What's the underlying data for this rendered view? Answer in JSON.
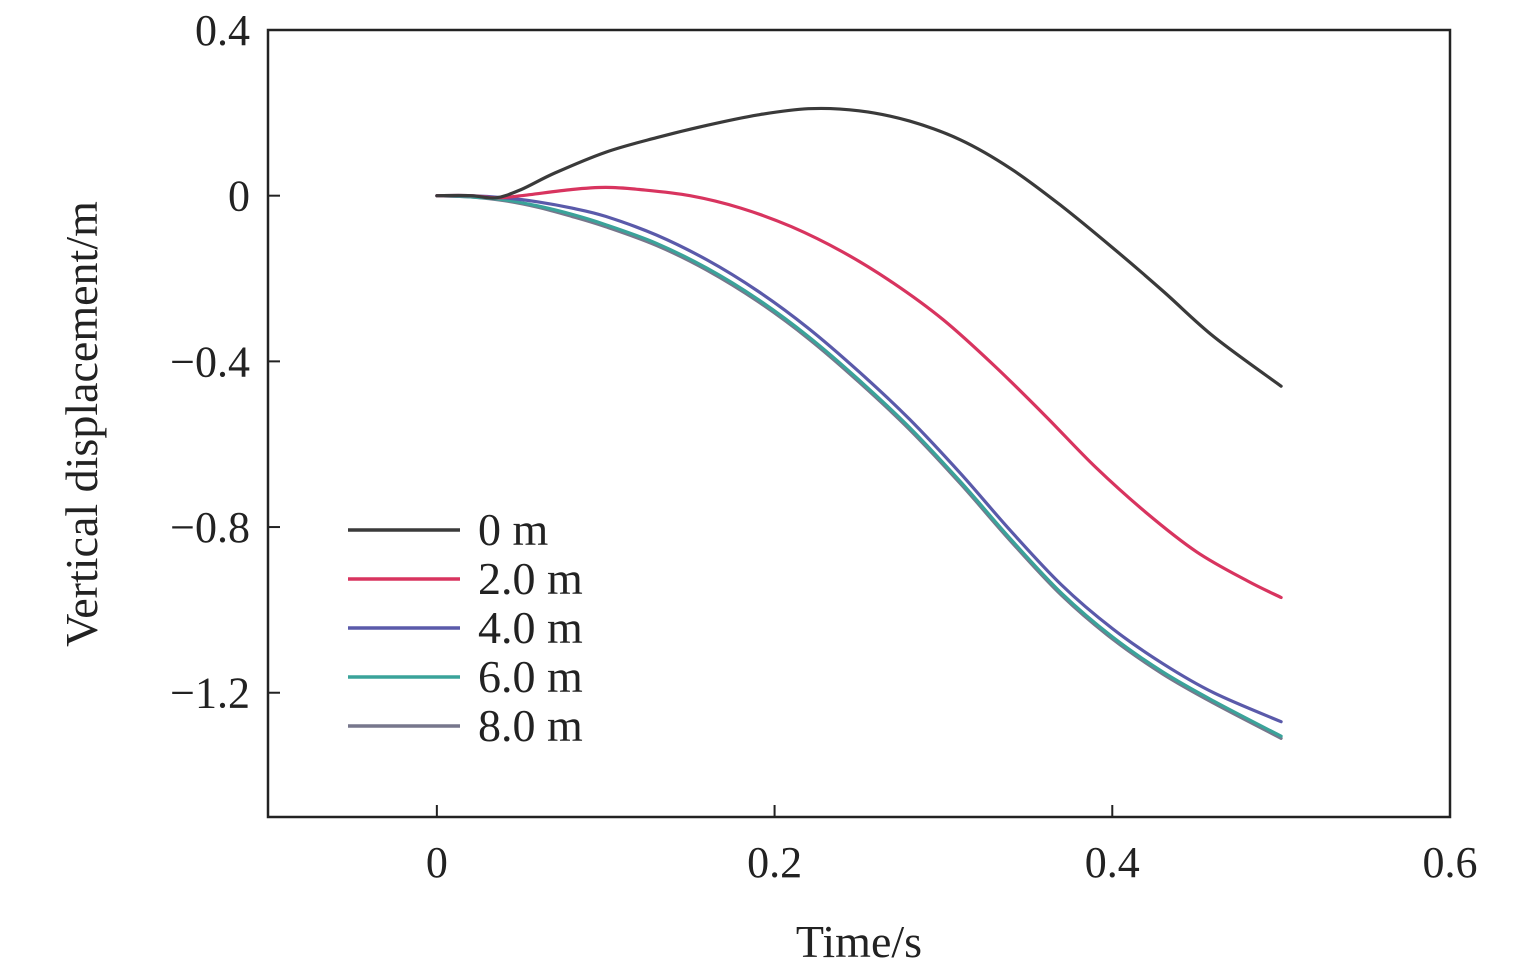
{
  "chart_data": {
    "type": "line",
    "xlabel": "Time/s",
    "ylabel": "Vertical displacement/m",
    "xlim": [
      -0.1,
      0.6
    ],
    "ylim": [
      -1.5,
      0.4
    ],
    "x_ticks": [
      "0",
      "0.2",
      "0.4",
      "0.6"
    ],
    "x_tick_values": [
      0,
      0.2,
      0.4,
      0.6
    ],
    "y_ticks": [
      "0.4",
      "0",
      "−0.4",
      "−0.8",
      "−1.2"
    ],
    "y_tick_values": [
      0.4,
      0,
      -0.4,
      -0.8,
      -1.2
    ],
    "grid": false,
    "legend_position": "bottom-left",
    "series": [
      {
        "name": "0 m",
        "color": "#3a3a3a",
        "x": [
          0,
          0.02,
          0.035,
          0.05,
          0.07,
          0.1,
          0.13,
          0.16,
          0.19,
          0.22,
          0.25,
          0.28,
          0.31,
          0.34,
          0.37,
          0.4,
          0.43,
          0.46,
          0.5
        ],
        "y": [
          0,
          0,
          -0.005,
          0.015,
          0.055,
          0.105,
          0.14,
          0.17,
          0.195,
          0.21,
          0.205,
          0.18,
          0.135,
          0.065,
          -0.025,
          -0.125,
          -0.23,
          -0.34,
          -0.46
        ]
      },
      {
        "name": "2.0 m",
        "color": "#d8345f",
        "x": [
          0,
          0.02,
          0.035,
          0.05,
          0.08,
          0.1,
          0.12,
          0.15,
          0.18,
          0.21,
          0.24,
          0.27,
          0.3,
          0.33,
          0.36,
          0.39,
          0.42,
          0.45,
          0.48,
          0.5
        ],
        "y": [
          0,
          0,
          -0.005,
          0,
          0.015,
          0.02,
          0.015,
          0,
          -0.03,
          -0.075,
          -0.135,
          -0.21,
          -0.3,
          -0.41,
          -0.53,
          -0.655,
          -0.765,
          -0.86,
          -0.93,
          -0.97
        ]
      },
      {
        "name": "4.0 m",
        "color": "#5a5aaa",
        "x": [
          0,
          0.02,
          0.04,
          0.06,
          0.08,
          0.1,
          0.13,
          0.16,
          0.19,
          0.22,
          0.25,
          0.28,
          0.31,
          0.34,
          0.37,
          0.4,
          0.43,
          0.46,
          0.5
        ],
        "y": [
          0,
          0,
          -0.005,
          -0.015,
          -0.03,
          -0.05,
          -0.095,
          -0.155,
          -0.23,
          -0.32,
          -0.425,
          -0.54,
          -0.67,
          -0.81,
          -0.94,
          -1.045,
          -1.13,
          -1.2,
          -1.27
        ]
      },
      {
        "name": "6.0 m",
        "color": "#3aa39a",
        "x": [
          0,
          0.02,
          0.04,
          0.06,
          0.08,
          0.1,
          0.13,
          0.16,
          0.19,
          0.22,
          0.25,
          0.28,
          0.31,
          0.34,
          0.37,
          0.4,
          0.43,
          0.46,
          0.5
        ],
        "y": [
          0,
          -0.003,
          -0.01,
          -0.025,
          -0.045,
          -0.07,
          -0.115,
          -0.175,
          -0.25,
          -0.34,
          -0.445,
          -0.56,
          -0.69,
          -0.83,
          -0.96,
          -1.065,
          -1.15,
          -1.22,
          -1.305
        ]
      },
      {
        "name": "8.0 m",
        "color": "#77778c",
        "x": [
          0,
          0.02,
          0.04,
          0.06,
          0.08,
          0.1,
          0.13,
          0.16,
          0.19,
          0.22,
          0.25,
          0.28,
          0.31,
          0.34,
          0.37,
          0.4,
          0.43,
          0.46,
          0.5
        ],
        "y": [
          0,
          -0.003,
          -0.012,
          -0.028,
          -0.05,
          -0.075,
          -0.12,
          -0.18,
          -0.255,
          -0.345,
          -0.45,
          -0.565,
          -0.695,
          -0.835,
          -0.965,
          -1.07,
          -1.155,
          -1.225,
          -1.31
        ]
      }
    ]
  }
}
